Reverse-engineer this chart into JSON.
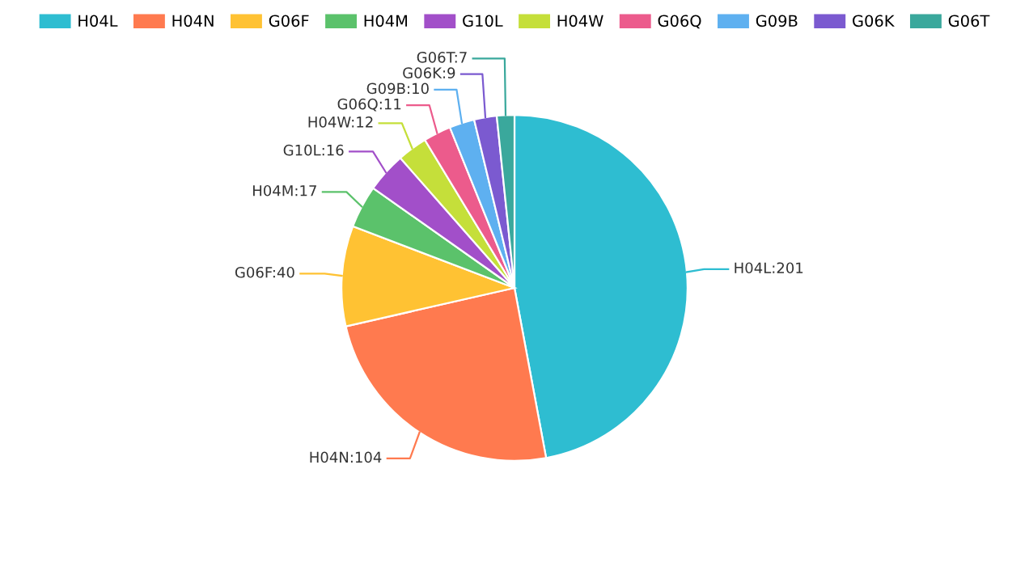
{
  "chart_data": {
    "type": "pie",
    "categories": [
      "H04L",
      "H04N",
      "G06F",
      "H04M",
      "G10L",
      "H04W",
      "G06Q",
      "G09B",
      "G06K",
      "G06T"
    ],
    "values": [
      201,
      104,
      40,
      17,
      16,
      12,
      11,
      10,
      9,
      7
    ],
    "colors": [
      "#2ebdd1",
      "#ff7a4f",
      "#ffc233",
      "#5bc26b",
      "#a24fc9",
      "#c5df3a",
      "#ec5b8c",
      "#5eb0f0",
      "#7b5ad0",
      "#3aa89c"
    ],
    "value_labels": [
      "H04L:201",
      "H04N:104",
      "G06F:40",
      "H04M:17",
      "G10L:16",
      "H04W:12",
      "G06Q:11",
      "G09B:10",
      "G06K:9",
      "G06T:7"
    ],
    "legend": "top"
  }
}
